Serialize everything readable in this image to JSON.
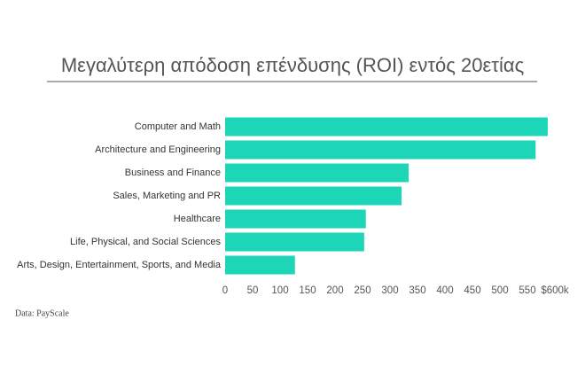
{
  "chart_data": {
    "type": "bar",
    "orientation": "horizontal",
    "title": "Μεγαλύτερη απόδοση επένδυσης (ROI) εντός 20ετίας",
    "categories": [
      "Computer and Math",
      "Architecture and Engineering",
      "Business and Finance",
      "Sales, Marketing and PR",
      "Healthcare",
      "Life, Physical, and Social Sciences",
      "Arts, Design, Entertainment, Sports, and Media"
    ],
    "values": [
      587,
      565,
      334,
      321,
      256,
      253,
      127
    ],
    "color": "#1dd6b7",
    "xlim": [
      0,
      600
    ],
    "xticks": [
      0,
      50,
      100,
      150,
      200,
      250,
      300,
      350,
      400,
      450,
      500,
      550,
      {
        "value": 600,
        "label": "$600k"
      }
    ],
    "source": "Data: PayScale"
  }
}
